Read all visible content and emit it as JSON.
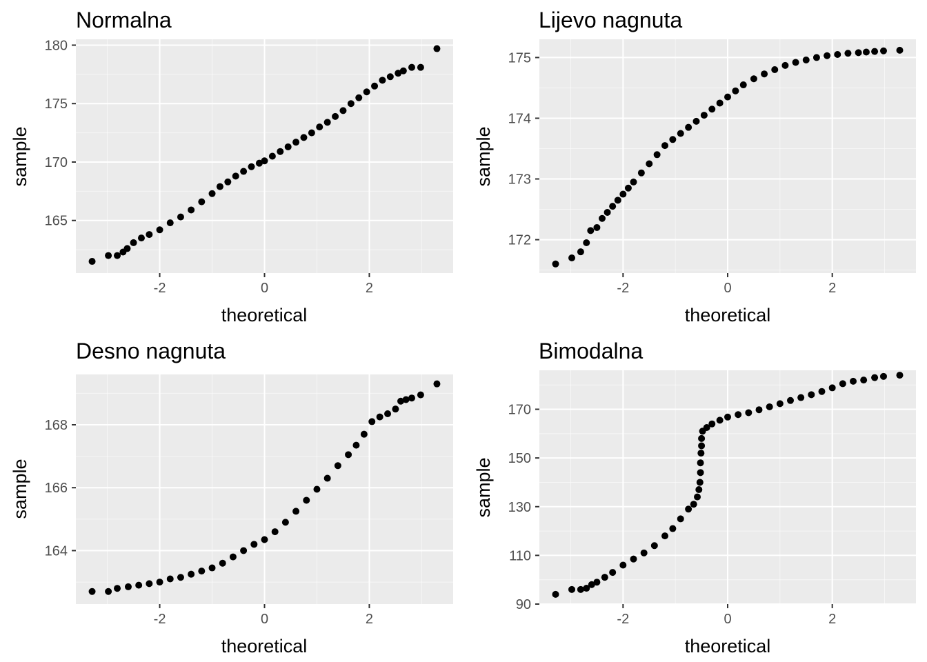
{
  "chart_data": [
    {
      "type": "scatter",
      "title": "Normalna",
      "xlabel": "theoretical",
      "ylabel": "sample",
      "xlim": [
        -3.6,
        3.6
      ],
      "ylim": [
        160.5,
        180.5
      ],
      "x_ticks": [
        -2,
        0,
        2
      ],
      "y_ticks": [
        165,
        170,
        175,
        180
      ],
      "grid": true,
      "legend": "none",
      "point_color": "#000000",
      "points": [
        [
          -3.29,
          161.5
        ],
        [
          -2.98,
          162.0
        ],
        [
          -2.81,
          162.0
        ],
        [
          -2.7,
          162.3
        ],
        [
          -2.62,
          162.6
        ],
        [
          -2.5,
          163.1
        ],
        [
          -2.35,
          163.5
        ],
        [
          -2.2,
          163.8
        ],
        [
          -2.0,
          164.2
        ],
        [
          -1.8,
          164.8
        ],
        [
          -1.6,
          165.3
        ],
        [
          -1.4,
          165.9
        ],
        [
          -1.2,
          166.6
        ],
        [
          -1.0,
          167.3
        ],
        [
          -0.85,
          167.9
        ],
        [
          -0.7,
          168.3
        ],
        [
          -0.55,
          168.8
        ],
        [
          -0.4,
          169.2
        ],
        [
          -0.25,
          169.6
        ],
        [
          -0.1,
          169.9
        ],
        [
          0.0,
          170.1
        ],
        [
          0.15,
          170.5
        ],
        [
          0.3,
          170.9
        ],
        [
          0.45,
          171.3
        ],
        [
          0.6,
          171.7
        ],
        [
          0.75,
          172.1
        ],
        [
          0.9,
          172.5
        ],
        [
          1.05,
          173.0
        ],
        [
          1.2,
          173.4
        ],
        [
          1.35,
          173.9
        ],
        [
          1.5,
          174.4
        ],
        [
          1.65,
          175.0
        ],
        [
          1.8,
          175.5
        ],
        [
          1.95,
          176.0
        ],
        [
          2.1,
          176.5
        ],
        [
          2.25,
          177.0
        ],
        [
          2.4,
          177.3
        ],
        [
          2.55,
          177.6
        ],
        [
          2.65,
          177.8
        ],
        [
          2.81,
          178.1
        ],
        [
          2.98,
          178.1
        ],
        [
          3.29,
          179.7
        ]
      ]
    },
    {
      "type": "scatter",
      "title": "Lijevo nagnuta",
      "xlabel": "theoretical",
      "ylabel": "sample",
      "xlim": [
        -3.6,
        3.6
      ],
      "ylim": [
        171.45,
        175.3
      ],
      "x_ticks": [
        -2,
        0,
        2
      ],
      "y_ticks": [
        172,
        173,
        174,
        175
      ],
      "grid": true,
      "legend": "none",
      "point_color": "#000000",
      "points": [
        [
          -3.29,
          171.6
        ],
        [
          -2.98,
          171.7
        ],
        [
          -2.81,
          171.8
        ],
        [
          -2.7,
          171.95
        ],
        [
          -2.62,
          172.15
        ],
        [
          -2.5,
          172.2
        ],
        [
          -2.4,
          172.35
        ],
        [
          -2.3,
          172.45
        ],
        [
          -2.2,
          172.55
        ],
        [
          -2.1,
          172.65
        ],
        [
          -2.0,
          172.75
        ],
        [
          -1.9,
          172.85
        ],
        [
          -1.8,
          172.95
        ],
        [
          -1.65,
          173.1
        ],
        [
          -1.5,
          173.25
        ],
        [
          -1.35,
          173.4
        ],
        [
          -1.2,
          173.55
        ],
        [
          -1.05,
          173.65
        ],
        [
          -0.9,
          173.75
        ],
        [
          -0.75,
          173.85
        ],
        [
          -0.6,
          173.95
        ],
        [
          -0.45,
          174.05
        ],
        [
          -0.3,
          174.15
        ],
        [
          -0.15,
          174.25
        ],
        [
          0.0,
          174.35
        ],
        [
          0.15,
          174.45
        ],
        [
          0.3,
          174.55
        ],
        [
          0.5,
          174.65
        ],
        [
          0.7,
          174.73
        ],
        [
          0.9,
          174.8
        ],
        [
          1.1,
          174.87
        ],
        [
          1.3,
          174.92
        ],
        [
          1.5,
          174.96
        ],
        [
          1.7,
          175.0
        ],
        [
          1.9,
          175.03
        ],
        [
          2.1,
          175.05
        ],
        [
          2.3,
          175.07
        ],
        [
          2.5,
          175.08
        ],
        [
          2.65,
          175.09
        ],
        [
          2.81,
          175.1
        ],
        [
          2.98,
          175.11
        ],
        [
          3.29,
          175.12
        ]
      ]
    },
    {
      "type": "scatter",
      "title": "Desno nagnuta",
      "xlabel": "theoretical",
      "ylabel": "sample",
      "xlim": [
        -3.6,
        3.6
      ],
      "ylim": [
        162.3,
        169.6
      ],
      "x_ticks": [
        -2,
        0,
        2
      ],
      "y_ticks": [
        164,
        166,
        168
      ],
      "grid": true,
      "legend": "none",
      "point_color": "#000000",
      "points": [
        [
          -3.29,
          162.7
        ],
        [
          -2.98,
          162.7
        ],
        [
          -2.81,
          162.8
        ],
        [
          -2.6,
          162.85
        ],
        [
          -2.4,
          162.9
        ],
        [
          -2.2,
          162.95
        ],
        [
          -2.0,
          163.0
        ],
        [
          -1.8,
          163.1
        ],
        [
          -1.6,
          163.15
        ],
        [
          -1.4,
          163.25
        ],
        [
          -1.2,
          163.35
        ],
        [
          -1.0,
          163.45
        ],
        [
          -0.8,
          163.6
        ],
        [
          -0.6,
          163.8
        ],
        [
          -0.4,
          164.0
        ],
        [
          -0.2,
          164.2
        ],
        [
          0.0,
          164.35
        ],
        [
          0.2,
          164.6
        ],
        [
          0.4,
          164.9
        ],
        [
          0.6,
          165.25
        ],
        [
          0.8,
          165.6
        ],
        [
          1.0,
          165.95
        ],
        [
          1.2,
          166.3
        ],
        [
          1.4,
          166.7
        ],
        [
          1.6,
          167.05
        ],
        [
          1.75,
          167.35
        ],
        [
          1.9,
          167.7
        ],
        [
          2.05,
          168.1
        ],
        [
          2.2,
          168.25
        ],
        [
          2.35,
          168.35
        ],
        [
          2.5,
          168.5
        ],
        [
          2.6,
          168.75
        ],
        [
          2.7,
          168.8
        ],
        [
          2.81,
          168.85
        ],
        [
          2.98,
          168.95
        ],
        [
          3.29,
          169.3
        ]
      ]
    },
    {
      "type": "scatter",
      "title": "Bimodalna",
      "xlabel": "theoretical",
      "ylabel": "sample",
      "xlim": [
        -3.6,
        3.6
      ],
      "ylim": [
        90,
        186
      ],
      "x_ticks": [
        -2,
        0,
        2
      ],
      "y_ticks": [
        90,
        110,
        130,
        150,
        170
      ],
      "grid": true,
      "legend": "none",
      "point_color": "#000000",
      "points": [
        [
          -3.29,
          94
        ],
        [
          -2.98,
          96
        ],
        [
          -2.81,
          96
        ],
        [
          -2.7,
          96.5
        ],
        [
          -2.6,
          98
        ],
        [
          -2.5,
          99
        ],
        [
          -2.35,
          101
        ],
        [
          -2.2,
          103
        ],
        [
          -2.0,
          106
        ],
        [
          -1.8,
          108.5
        ],
        [
          -1.6,
          111
        ],
        [
          -1.4,
          114
        ],
        [
          -1.2,
          118
        ],
        [
          -1.05,
          121
        ],
        [
          -0.9,
          125
        ],
        [
          -0.75,
          129
        ],
        [
          -0.65,
          131
        ],
        [
          -0.58,
          134
        ],
        [
          -0.55,
          137
        ],
        [
          -0.53,
          140
        ],
        [
          -0.52,
          144
        ],
        [
          -0.52,
          148
        ],
        [
          -0.51,
          152
        ],
        [
          -0.5,
          155
        ],
        [
          -0.5,
          158
        ],
        [
          -0.48,
          161
        ],
        [
          -0.4,
          162.5
        ],
        [
          -0.3,
          164
        ],
        [
          -0.15,
          165.5
        ],
        [
          0.0,
          166.8
        ],
        [
          0.2,
          167.8
        ],
        [
          0.4,
          168.6
        ],
        [
          0.6,
          169.8
        ],
        [
          0.8,
          171
        ],
        [
          1.0,
          172.3
        ],
        [
          1.2,
          173.6
        ],
        [
          1.4,
          174.8
        ],
        [
          1.6,
          176
        ],
        [
          1.8,
          177.3
        ],
        [
          2.0,
          178.8
        ],
        [
          2.2,
          180.5
        ],
        [
          2.4,
          181.5
        ],
        [
          2.6,
          182
        ],
        [
          2.81,
          183
        ],
        [
          2.98,
          183.5
        ],
        [
          3.29,
          184
        ]
      ]
    }
  ]
}
